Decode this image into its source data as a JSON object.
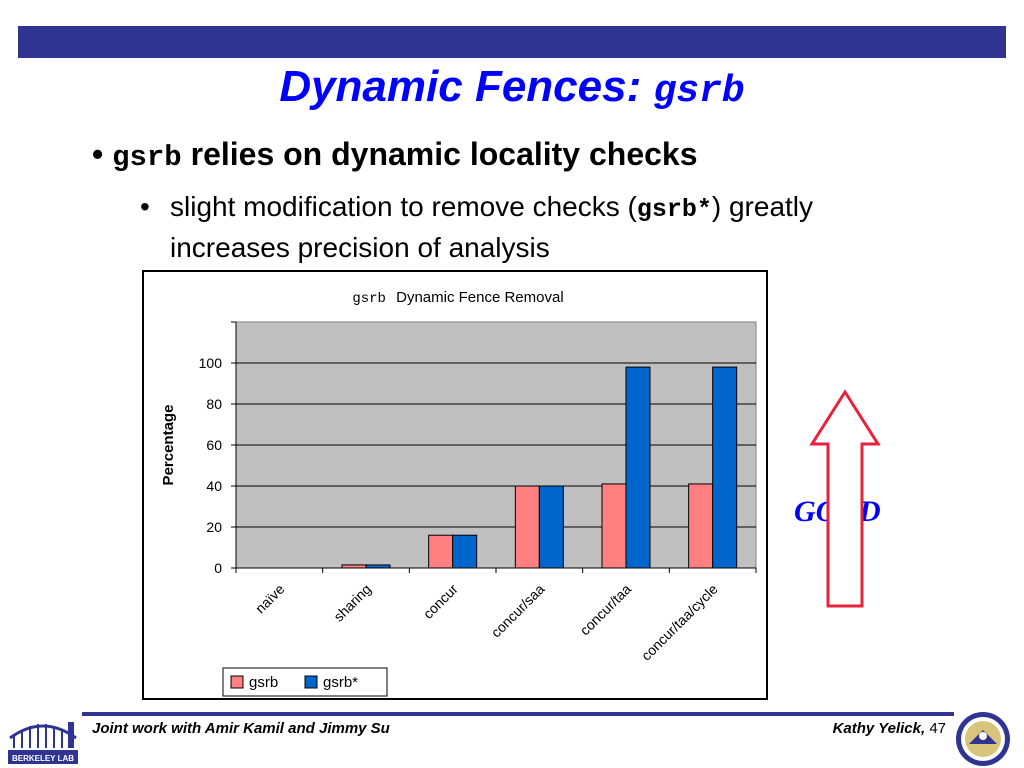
{
  "slide": {
    "title_text": "Dynamic Fences: ",
    "title_code": "gsrb",
    "bullet1_code": "gsrb",
    "bullet1_text": " relies on dynamic locality checks",
    "bullet2_pre": "slight modification to remove checks (",
    "bullet2_code": "gsrb*",
    "bullet2_post": ") greatly increases precision of analysis",
    "good_label": "GOOD",
    "footer_left": "Joint work with Amir Kamil and Jimmy Su",
    "footer_author": "Kathy Yelick,",
    "page_number": "47",
    "logo_left_text": "BERKELEY LAB"
  },
  "colors": {
    "bar": "#2f3492",
    "title": "#0000ff",
    "plot_bg": "#c0c0c0",
    "series1": "#ff8080",
    "series2": "#0066cc",
    "arrow": "#e8213c"
  },
  "chart_data": {
    "type": "bar",
    "title_code": "gsrb",
    "title": "Dynamic Fence Removal",
    "xlabel": "",
    "ylabel": "Percentage",
    "ylim": [
      0,
      120
    ],
    "yticks": [
      0,
      20,
      40,
      60,
      80,
      100
    ],
    "grid": true,
    "legend": "bottom-left",
    "categories": [
      "naïve",
      "sharing",
      "concur",
      "concur/saa",
      "concur/taa",
      "concur/taa/cycle"
    ],
    "series": [
      {
        "name": "gsrb",
        "values": [
          0,
          1.5,
          16,
          40,
          41,
          41
        ]
      },
      {
        "name": "gsrb*",
        "values": [
          0,
          1.5,
          16,
          40,
          98,
          98
        ]
      }
    ]
  }
}
